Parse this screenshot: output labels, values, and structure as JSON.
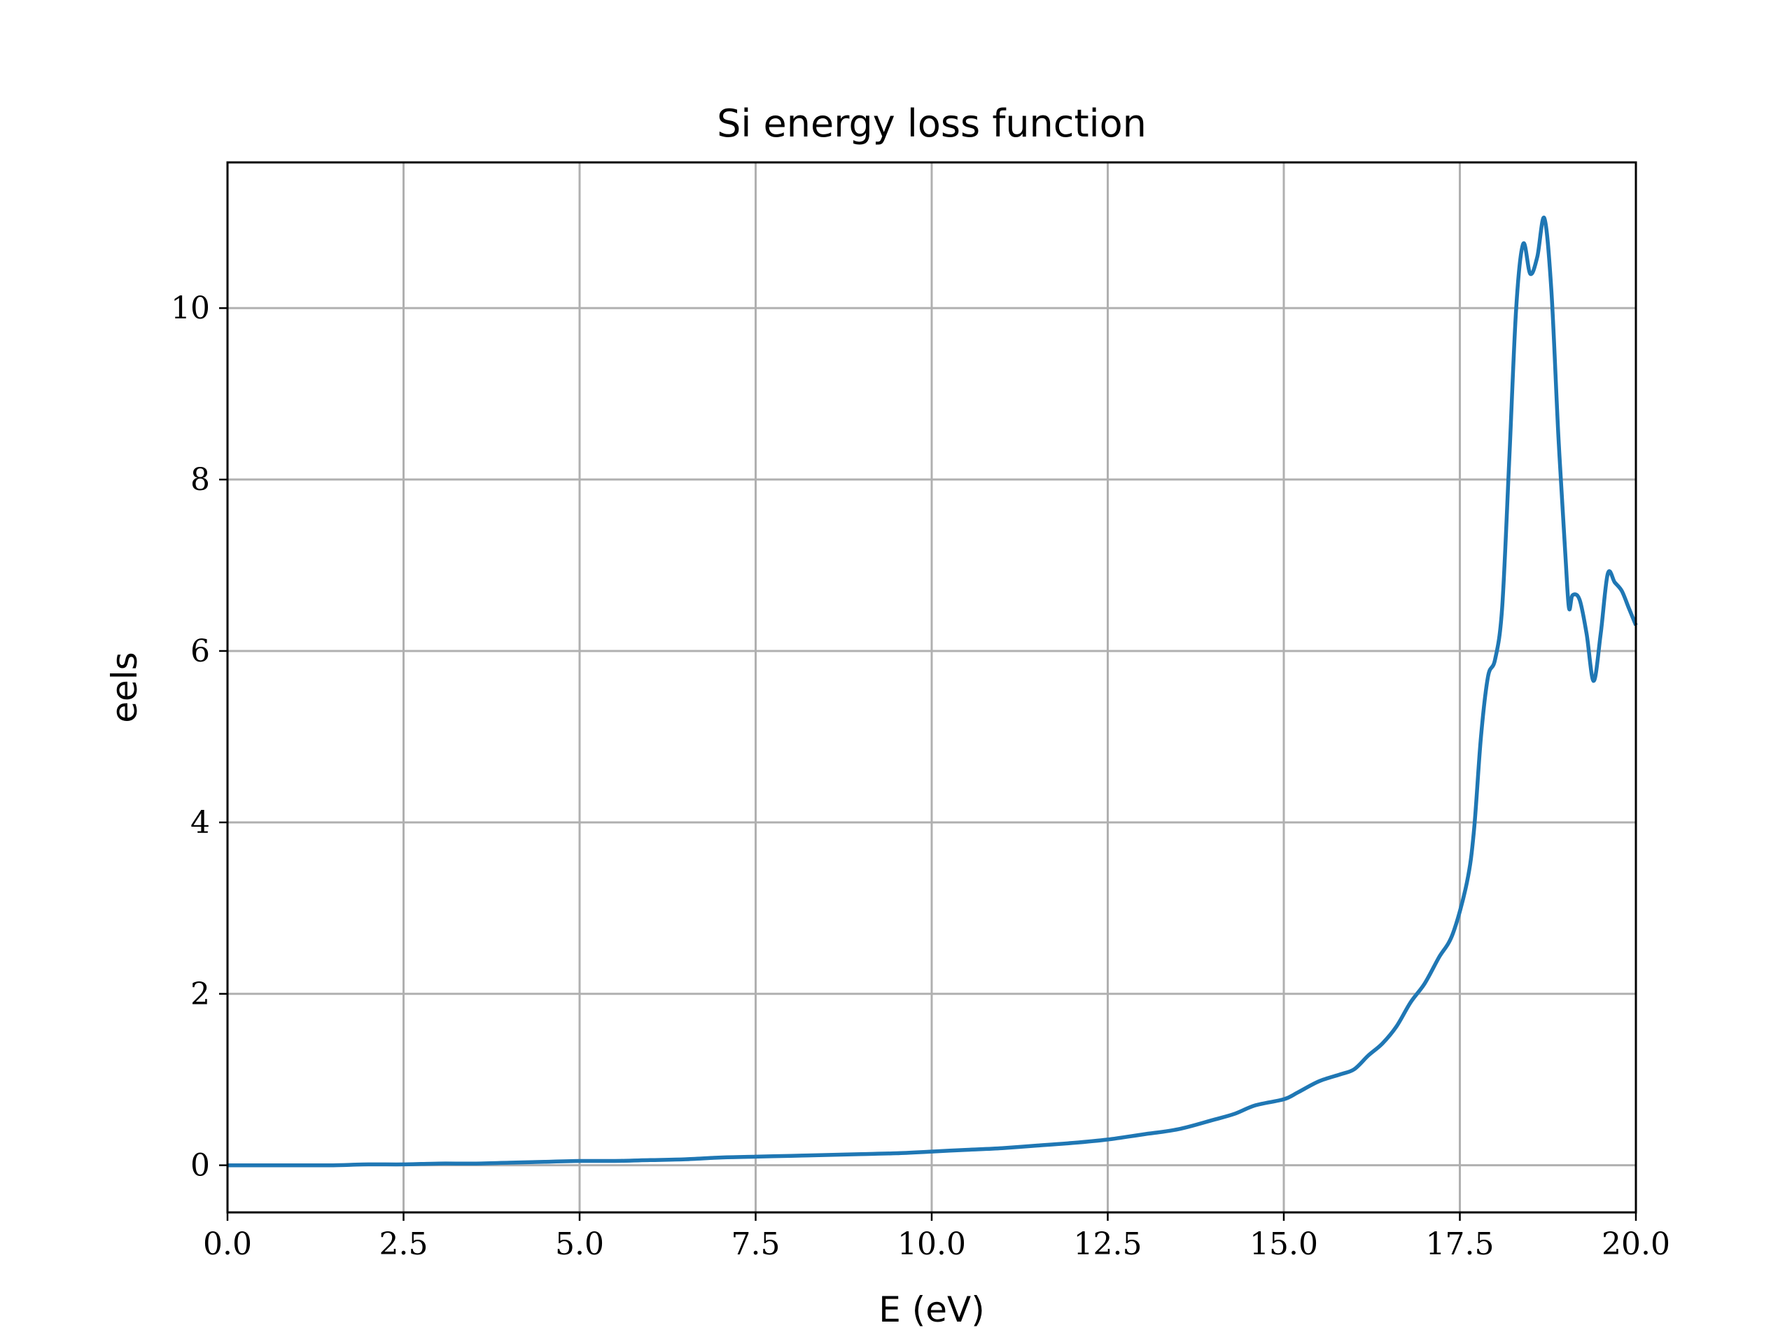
{
  "chart_data": {
    "type": "line",
    "title": "Si energy loss function",
    "xlabel": "E (eV)",
    "ylabel": "eels",
    "xlim": [
      0,
      20
    ],
    "ylim": [
      -0.55,
      11.7
    ],
    "grid": true,
    "line_color": "#1f77b4",
    "grid_color": "#b0b0b0",
    "xticks": [
      0,
      2.5,
      5,
      7.5,
      10,
      12.5,
      15,
      17.5,
      20
    ],
    "xtick_labels": [
      "0.0",
      "2.5",
      "5.0",
      "7.5",
      "10.0",
      "12.5",
      "15.0",
      "17.5",
      "20.0"
    ],
    "yticks": [
      0,
      2,
      4,
      6,
      8,
      10
    ],
    "ytick_labels": [
      "0",
      "2",
      "4",
      "6",
      "8",
      "10"
    ],
    "series": [
      {
        "name": "eels",
        "x": [
          0,
          0.5,
          1,
          1.5,
          2,
          2.5,
          3,
          3.5,
          4,
          4.5,
          5,
          5.5,
          6,
          6.5,
          7,
          7.5,
          8,
          8.5,
          9,
          9.5,
          10,
          10.5,
          11,
          11.5,
          12,
          12.5,
          13,
          13.5,
          14,
          14.3,
          14.6,
          15,
          15.2,
          15.5,
          15.8,
          16,
          16.2,
          16.4,
          16.6,
          16.8,
          17,
          17.2,
          17.4,
          17.6,
          17.7,
          17.8,
          17.9,
          18,
          18.1,
          18.2,
          18.3,
          18.4,
          18.5,
          18.6,
          18.7,
          18.8,
          18.9,
          19,
          19.05,
          19.1,
          19.2,
          19.3,
          19.4,
          19.5,
          19.6,
          19.7,
          19.8,
          19.9,
          20
        ],
        "values": [
          0,
          0,
          0,
          0,
          0.01,
          0.01,
          0.02,
          0.02,
          0.03,
          0.04,
          0.05,
          0.05,
          0.06,
          0.07,
          0.09,
          0.1,
          0.11,
          0.12,
          0.13,
          0.14,
          0.16,
          0.18,
          0.2,
          0.23,
          0.26,
          0.3,
          0.36,
          0.42,
          0.53,
          0.6,
          0.7,
          0.77,
          0.85,
          0.98,
          1.06,
          1.12,
          1.28,
          1.42,
          1.62,
          1.9,
          2.12,
          2.42,
          2.7,
          3.3,
          3.9,
          5.0,
          5.7,
          5.9,
          6.5,
          8.2,
          10.0,
          10.75,
          10.4,
          10.6,
          11.05,
          10.2,
          8.5,
          7.1,
          6.5,
          6.65,
          6.6,
          6.2,
          5.65,
          6.2,
          6.9,
          6.8,
          6.7,
          6.5,
          6.3
        ]
      }
    ]
  }
}
